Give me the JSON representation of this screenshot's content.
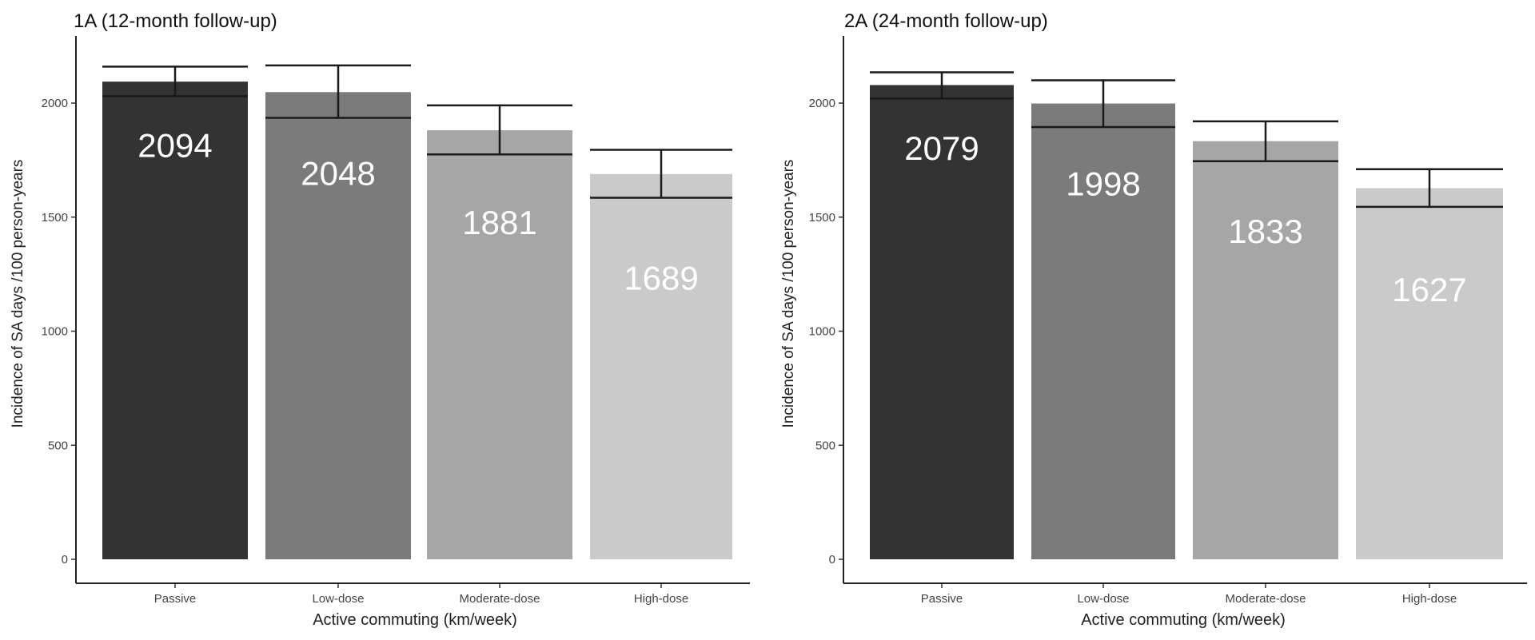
{
  "chart_data": [
    {
      "type": "bar",
      "title": "1A (12-month follow-up)",
      "xlabel": "Active commuting (km/week)",
      "ylabel": "Incidence of SA days /100 person-years",
      "categories": [
        "Passive",
        "Low-dose",
        "Moderate-dose",
        "High-dose"
      ],
      "values": [
        2094,
        2048,
        1881,
        1689
      ],
      "error_low": [
        2030,
        1935,
        1775,
        1585
      ],
      "error_high": [
        2160,
        2165,
        1990,
        1795
      ],
      "data_labels": [
        "2094",
        "2048",
        "1881",
        "1689"
      ],
      "ylim": [
        0,
        2200
      ],
      "yticks": [
        0,
        500,
        1000,
        1500,
        2000
      ],
      "colors": [
        "#333333",
        "#7b7b7b",
        "#a6a6a6",
        "#cacaca"
      ],
      "grid": false,
      "legend": "none"
    },
    {
      "type": "bar",
      "title": "2A (24-month follow-up)",
      "xlabel": "Active commuting (km/week)",
      "ylabel": "Incidence of SA days /100 person-years",
      "categories": [
        "Passive",
        "Low-dose",
        "Moderate-dose",
        "High-dose"
      ],
      "values": [
        2079,
        1998,
        1833,
        1627
      ],
      "error_low": [
        2020,
        1895,
        1745,
        1545
      ],
      "error_high": [
        2135,
        2100,
        1920,
        1710
      ],
      "data_labels": [
        "2079",
        "1998",
        "1833",
        "1627"
      ],
      "ylim": [
        0,
        2200
      ],
      "yticks": [
        0,
        500,
        1000,
        1500,
        2000
      ],
      "colors": [
        "#333333",
        "#7b7b7b",
        "#a6a6a6",
        "#cacaca"
      ],
      "grid": false,
      "legend": "none"
    }
  ]
}
